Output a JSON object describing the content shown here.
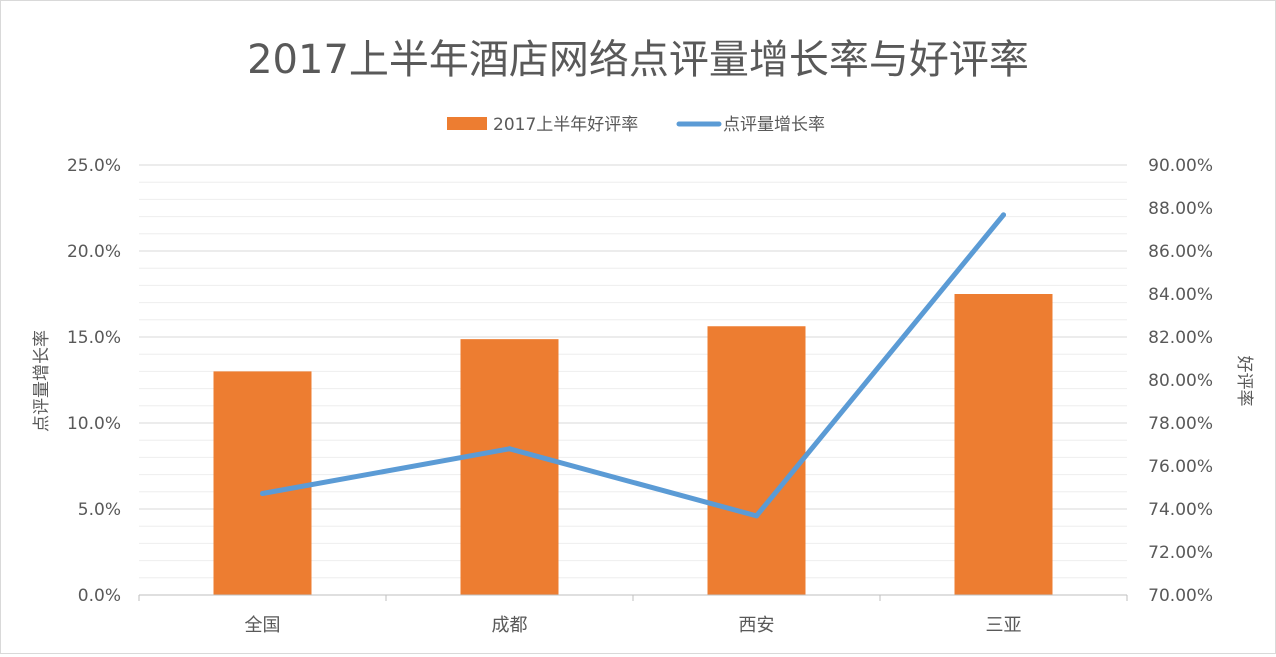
{
  "chart_data": {
    "type": "bar",
    "title": "2017上半年酒店网络点评量增长率与好评率",
    "categories": [
      "全国",
      "成都",
      "西安",
      "三亚"
    ],
    "series": [
      {
        "name": "2017上半年好评率",
        "type": "bar",
        "axis": "right",
        "color": "#ED7D31",
        "values": [
          80.4,
          81.9,
          82.5,
          84.0
        ]
      },
      {
        "name": "点评量增长率",
        "type": "line",
        "axis": "left",
        "color": "#5B9BD5",
        "values": [
          5.9,
          8.5,
          4.6,
          22.1
        ]
      }
    ],
    "y_left": {
      "label": "点评量增长率",
      "ylim": [
        0,
        25
      ],
      "ticks": [
        "0.0%",
        "5.0%",
        "10.0%",
        "15.0%",
        "20.0%",
        "25.0%"
      ]
    },
    "y_right": {
      "label": "好评率",
      "ylim": [
        70,
        90
      ],
      "ticks": [
        "70.00%",
        "72.00%",
        "74.00%",
        "76.00%",
        "78.00%",
        "80.00%",
        "82.00%",
        "84.00%",
        "86.00%",
        "88.00%",
        "90.00%"
      ]
    },
    "legend_position": "top",
    "grid": true
  }
}
